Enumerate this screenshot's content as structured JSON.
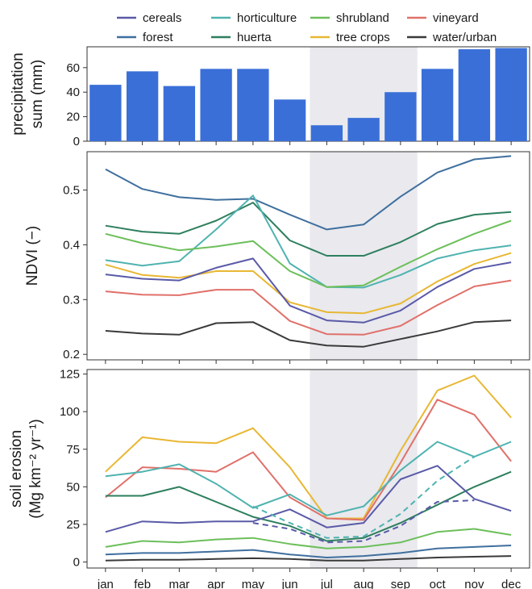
{
  "legend": [
    {
      "key": "cereals",
      "label": "cereals",
      "color": "#5a5aa8"
    },
    {
      "key": "forest",
      "label": "forest",
      "color": "#3f6f9e"
    },
    {
      "key": "horticulture",
      "label": "horticulture",
      "color": "#4fb3b0"
    },
    {
      "key": "huerta",
      "label": "huerta",
      "color": "#2e7f5e"
    },
    {
      "key": "shrubland",
      "label": "shrubland",
      "color": "#6cbf5a"
    },
    {
      "key": "tree_crops",
      "label": "tree crops",
      "color": "#e8b733"
    },
    {
      "key": "vineyard",
      "label": "vineyard",
      "color": "#e0706a"
    },
    {
      "key": "water_urban",
      "label": "water/urban",
      "color": "#3a3a3a"
    }
  ],
  "colors": {
    "bar": "#3a6fd8",
    "shade": "#e9e9ee",
    "frame": "#333333"
  },
  "chart_data": [
    {
      "type": "bar",
      "id": "precipitation",
      "title": "",
      "xlabel": "",
      "ylabel_lines": [
        "precipitation",
        "sum (mm)"
      ],
      "categories": [
        "jan",
        "feb",
        "mar",
        "apr",
        "may",
        "jun",
        "jul",
        "aug",
        "sep",
        "oct",
        "nov",
        "dec"
      ],
      "values": [
        46,
        57,
        45,
        59,
        59,
        34,
        13,
        19,
        40,
        59,
        75,
        76
      ],
      "ylim": [
        0,
        77
      ],
      "yticks": [
        0,
        20,
        40,
        60
      ],
      "shaded_months": [
        "jul",
        "aug",
        "sep"
      ],
      "grid": false
    },
    {
      "type": "line",
      "id": "ndvi",
      "title": "",
      "xlabel": "",
      "ylabel_lines": [
        "NDVI (−)"
      ],
      "categories": [
        "jan",
        "feb",
        "mar",
        "apr",
        "may",
        "jun",
        "jul",
        "aug",
        "sep",
        "oct",
        "nov",
        "dec"
      ],
      "ylim": [
        0.19,
        0.57
      ],
      "yticks": [
        0.2,
        0.3,
        0.4,
        0.5
      ],
      "shaded_months": [
        "jul",
        "aug",
        "sep"
      ],
      "grid": false,
      "series": [
        {
          "key": "forest",
          "values": [
            0.538,
            0.502,
            0.487,
            0.482,
            0.484,
            0.455,
            0.428,
            0.437,
            0.488,
            0.532,
            0.556,
            0.562
          ]
        },
        {
          "key": "huerta",
          "values": [
            0.435,
            0.424,
            0.42,
            0.444,
            0.477,
            0.408,
            0.38,
            0.38,
            0.405,
            0.438,
            0.455,
            0.46
          ]
        },
        {
          "key": "horticulture",
          "values": [
            0.372,
            0.362,
            0.37,
            0.428,
            0.49,
            0.366,
            0.323,
            0.322,
            0.345,
            0.375,
            0.39,
            0.399
          ]
        },
        {
          "key": "shrubland",
          "values": [
            0.42,
            0.403,
            0.39,
            0.397,
            0.407,
            0.352,
            0.323,
            0.326,
            0.36,
            0.392,
            0.42,
            0.444
          ]
        },
        {
          "key": "tree_crops",
          "values": [
            0.364,
            0.345,
            0.34,
            0.352,
            0.352,
            0.295,
            0.277,
            0.275,
            0.293,
            0.333,
            0.365,
            0.385
          ]
        },
        {
          "key": "cereals",
          "values": [
            0.346,
            0.338,
            0.335,
            0.358,
            0.375,
            0.289,
            0.262,
            0.258,
            0.28,
            0.323,
            0.356,
            0.368
          ]
        },
        {
          "key": "vineyard",
          "values": [
            0.315,
            0.309,
            0.308,
            0.318,
            0.318,
            0.261,
            0.237,
            0.236,
            0.252,
            0.29,
            0.324,
            0.335
          ]
        },
        {
          "key": "water_urban",
          "values": [
            0.243,
            0.238,
            0.236,
            0.257,
            0.259,
            0.226,
            0.216,
            0.214,
            0.228,
            0.242,
            0.259,
            0.262
          ]
        }
      ]
    },
    {
      "type": "line",
      "id": "soil_erosion",
      "title": "",
      "xlabel": "",
      "ylabel_lines": [
        "soil erosion",
        "(Mg km⁻² yr⁻¹)"
      ],
      "categories": [
        "jan",
        "feb",
        "mar",
        "apr",
        "may",
        "jun",
        "jul",
        "aug",
        "sep",
        "oct",
        "nov",
        "dec"
      ],
      "ylim": [
        -4,
        128
      ],
      "yticks": [
        0,
        25,
        50,
        75,
        100,
        125
      ],
      "shaded_months": [
        "jul",
        "aug",
        "sep"
      ],
      "grid": false,
      "series": [
        {
          "key": "tree_crops",
          "values": [
            60,
            83,
            80,
            79,
            89,
            63,
            29,
            29,
            74,
            114,
            124,
            96
          ]
        },
        {
          "key": "vineyard",
          "values": [
            43,
            63,
            62,
            60,
            73,
            43,
            29,
            28,
            66,
            108,
            98,
            67
          ]
        },
        {
          "key": "horticulture",
          "values": [
            57,
            60,
            65,
            52,
            36,
            45,
            31,
            37,
            61,
            80,
            70,
            80
          ]
        },
        {
          "key": "huerta",
          "values": [
            44,
            44,
            50,
            40,
            30,
            24,
            14,
            16,
            26,
            38,
            50,
            60
          ]
        },
        {
          "key": "cereals",
          "values": [
            20,
            27,
            26,
            27,
            27,
            35,
            23,
            26,
            55,
            64,
            42,
            34
          ]
        },
        {
          "key": "shrubland",
          "values": [
            10,
            14,
            13,
            15,
            16,
            12,
            9,
            10,
            13,
            20,
            22,
            18
          ]
        },
        {
          "key": "forest",
          "values": [
            5,
            6,
            6,
            7,
            8,
            5,
            3,
            4,
            6,
            9,
            10,
            11
          ]
        },
        {
          "key": "water_urban",
          "values": [
            1,
            1.5,
            1.5,
            2,
            2.5,
            2,
            1,
            1,
            2,
            3,
            3.5,
            4
          ]
        },
        {
          "key": "horticulture",
          "style": "dashed",
          "values": [
            null,
            null,
            null,
            null,
            37,
            26,
            16,
            17,
            32,
            54,
            70,
            null
          ]
        },
        {
          "key": "cereals",
          "style": "dashed",
          "values": [
            null,
            null,
            null,
            null,
            26,
            22,
            13,
            14,
            24,
            40,
            41,
            null
          ]
        }
      ]
    }
  ]
}
